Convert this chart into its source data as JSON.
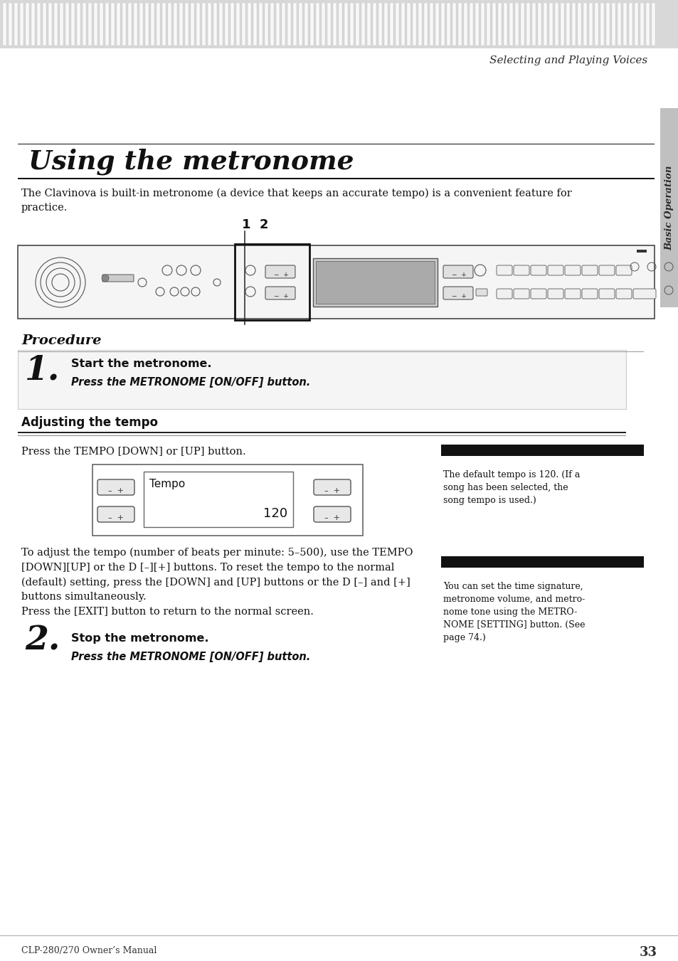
{
  "page_bg": "#ffffff",
  "header_text": "Selecting and Playing Voices",
  "header_text_color": "#2a2a2a",
  "title": "Using the metronome",
  "title_color": "#1a1a1a",
  "intro_text": "The Clavinova is built-in metronome (a device that keeps an accurate tempo) is a convenient feature for\npractice.",
  "procedure_label": "Procedure",
  "step1_number": "1.",
  "step1_bold": "Start the metronome.",
  "step1_italic": "Press the METRONOME [ON/OFF] button.",
  "adjusting_header": "Adjusting the tempo",
  "adjusting_body": "Press the TEMPO [DOWN] or [UP] button.",
  "tempo_display": "Tempo",
  "tempo_value": "120",
  "body_text1": "To adjust the tempo (number of beats per minute: 5–500), use the TEMPO\n[DOWN][UP] or the D [–][+] buttons. To reset the tempo to the normal\n(default) setting, press the [DOWN] and [UP] buttons or the D [–] and [+]\nbuttons simultaneously.\nPress the [EXIT] button to return to the normal screen.",
  "step2_number": "2.",
  "step2_bold": "Stop the metronome.",
  "step2_italic": "Press the METRONOME [ON/OFF] button.",
  "sidebar_label": "Basic Operation",
  "sidebar_color": "#c0c0c0",
  "note1_bar_color": "#111111",
  "note1_text": "The default tempo is 120. (If a\nsong has been selected, the\nsong tempo is used.)",
  "note2_bar_color": "#111111",
  "note2_text": "You can set the time signature,\nmetronome volume, and metro-\nnome tone using the METRO-\nNOME [SETTING] button. (See\npage 74.)",
  "footer_text": "CLP-280/270 Owner’s Manual",
  "footer_page": "33",
  "footer_color": "#333333"
}
